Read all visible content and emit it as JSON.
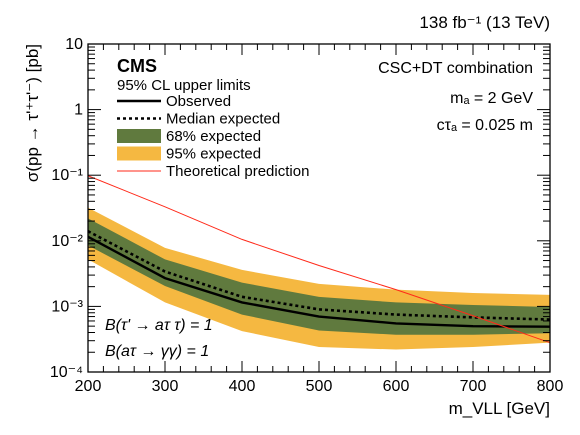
{
  "chart_data": {
    "type": "line",
    "lumi_label": "138 fb⁻¹ (13 TeV)",
    "experiment": "CMS",
    "cl_label": "95% CL upper limits",
    "combination_label": "CSC+DT combination",
    "mass_label": "mₐ = 2 GeV",
    "ctau_label": "cτₐ = 0.025 m",
    "branching_1": "B(τ' → aτ τ) = 1",
    "branching_2": "B(aτ → γγ) = 1",
    "xlabel": "m_VLL [GeV]",
    "ylabel": "σ(pp → τ'⁺τ'⁻) [pb]",
    "xlim": [
      200,
      800
    ],
    "ylim": [
      0.0001,
      10
    ],
    "y_scale": "log",
    "x_ticks": [
      200,
      300,
      400,
      500,
      600,
      700,
      800
    ],
    "y_ticks": [
      {
        "value": 10,
        "label": "10"
      },
      {
        "value": 1,
        "label": "1"
      },
      {
        "value": 0.1,
        "label": "10⁻¹"
      },
      {
        "value": 0.01,
        "label": "10⁻²"
      },
      {
        "value": 0.001,
        "label": "10⁻³"
      },
      {
        "value": 0.0001,
        "label": "10⁻⁴"
      }
    ],
    "x": [
      200,
      300,
      400,
      500,
      600,
      700,
      800
    ],
    "series": [
      {
        "name": "95% expected",
        "style": "band",
        "color": "#f5b841",
        "low": [
          0.0052,
          0.00115,
          0.00042,
          0.00024,
          0.00022,
          0.00024,
          0.00028
        ],
        "high": [
          0.032,
          0.0078,
          0.0036,
          0.0022,
          0.0018,
          0.0016,
          0.0015
        ]
      },
      {
        "name": "68% expected",
        "style": "band",
        "color": "#607a3e",
        "low": [
          0.0085,
          0.00205,
          0.00075,
          0.00043,
          0.00037,
          0.00037,
          0.00039
        ],
        "high": [
          0.022,
          0.0052,
          0.0023,
          0.0014,
          0.00115,
          0.00105,
          0.00098
        ]
      },
      {
        "name": "Median expected",
        "style": "dotted",
        "color": "#000000",
        "values": [
          0.014,
          0.0034,
          0.0014,
          0.0009,
          0.00075,
          0.00068,
          0.00063
        ]
      },
      {
        "name": "Observed",
        "style": "solid",
        "color": "#000000",
        "values": [
          0.0115,
          0.0027,
          0.00115,
          0.0007,
          0.00055,
          0.0005,
          0.00049
        ]
      },
      {
        "name": "Theoretical prediction",
        "style": "thin",
        "color": "#ff2a1a",
        "values": [
          0.098,
          0.033,
          0.0105,
          0.0042,
          0.0018,
          0.00072,
          0.00028
        ]
      }
    ],
    "grid": false,
    "legend_position": "top-left"
  }
}
